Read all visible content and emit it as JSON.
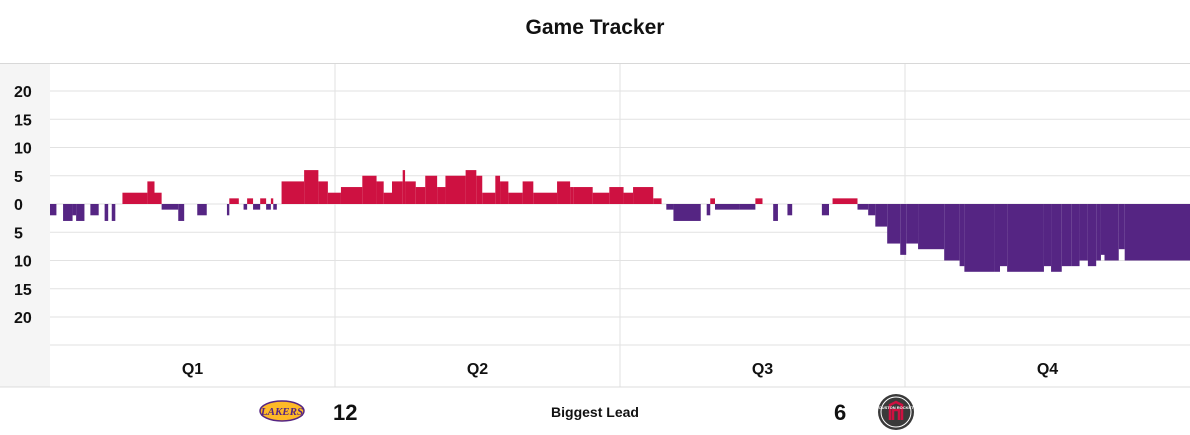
{
  "title": "Game Tracker",
  "colors": {
    "home": "#552583",
    "away": "#CE1141",
    "grid": "#e2e2e2",
    "axis_bg": "#f5f5f5"
  },
  "chart_data": {
    "type": "bar",
    "description": "Lead margin by game minute; positive = Rockets lead (red, above zero), negative = Lakers lead (purple, below zero)",
    "ytick_labels": [
      "20",
      "15",
      "10",
      "5",
      "0",
      "5",
      "10",
      "15",
      "20"
    ],
    "ytick_values": [
      20,
      15,
      10,
      5,
      0,
      -5,
      -10,
      -15,
      -20
    ],
    "ylim": [
      -25,
      25
    ],
    "grid": true,
    "xlim": [
      0,
      48
    ],
    "categories": [
      "Q1",
      "Q2",
      "Q3",
      "Q4"
    ],
    "series": [
      {
        "values": [
          [
            0.0,
            -2
          ],
          [
            0.27,
            0
          ],
          [
            0.55,
            -3
          ],
          [
            0.95,
            -2
          ],
          [
            1.1,
            -3
          ],
          [
            1.45,
            0
          ],
          [
            1.7,
            -2
          ],
          [
            2.05,
            0
          ],
          [
            2.3,
            -3
          ],
          [
            2.45,
            0
          ],
          [
            2.6,
            -3
          ],
          [
            2.75,
            0
          ],
          [
            3.05,
            2
          ],
          [
            4.1,
            4
          ],
          [
            4.4,
            2
          ],
          [
            4.7,
            -1
          ],
          [
            5.4,
            -3
          ],
          [
            5.65,
            0
          ],
          [
            6.2,
            -2
          ],
          [
            6.6,
            0
          ],
          [
            7.45,
            -2
          ],
          [
            7.55,
            1
          ],
          [
            7.95,
            0
          ],
          [
            8.15,
            -1
          ],
          [
            8.3,
            1
          ],
          [
            8.55,
            -1
          ],
          [
            8.85,
            1
          ],
          [
            9.1,
            -1
          ],
          [
            9.3,
            1
          ],
          [
            9.4,
            -1
          ],
          [
            9.55,
            0
          ],
          [
            9.75,
            4
          ],
          [
            10.7,
            6
          ],
          [
            11.3,
            4
          ],
          [
            11.7,
            2
          ],
          [
            12.25,
            3
          ],
          [
            13.15,
            5
          ],
          [
            13.75,
            4
          ],
          [
            14.05,
            2
          ],
          [
            14.4,
            4
          ],
          [
            14.85,
            6
          ],
          [
            14.95,
            4
          ],
          [
            15.4,
            3
          ],
          [
            15.8,
            5
          ],
          [
            16.3,
            3
          ],
          [
            16.65,
            5
          ],
          [
            17.5,
            6
          ],
          [
            17.95,
            5
          ],
          [
            18.2,
            2
          ],
          [
            18.75,
            5
          ],
          [
            18.95,
            4
          ],
          [
            19.3,
            2
          ],
          [
            19.9,
            4
          ],
          [
            20.35,
            2
          ],
          [
            21.35,
            4
          ],
          [
            21.9,
            3
          ],
          [
            22.05,
            3
          ],
          [
            22.85,
            2
          ],
          [
            23.55,
            3
          ],
          [
            24.15,
            2
          ],
          [
            24.55,
            3
          ],
          [
            25.4,
            1
          ],
          [
            25.75,
            0
          ],
          [
            25.95,
            -1
          ],
          [
            26.25,
            -3
          ],
          [
            27.4,
            0
          ],
          [
            27.65,
            -2
          ],
          [
            27.8,
            1
          ],
          [
            28.0,
            -1
          ],
          [
            29.05,
            -1
          ],
          [
            29.7,
            1
          ],
          [
            30.0,
            0
          ],
          [
            30.45,
            -3
          ],
          [
            30.65,
            0
          ],
          [
            31.05,
            -2
          ],
          [
            31.25,
            0
          ],
          [
            32.5,
            -2
          ],
          [
            32.8,
            0
          ],
          [
            32.95,
            1
          ],
          [
            34.0,
            -1
          ],
          [
            34.45,
            -2
          ],
          [
            34.75,
            -4
          ],
          [
            35.25,
            -7
          ],
          [
            35.8,
            -9
          ],
          [
            36.05,
            -7
          ],
          [
            36.55,
            -8
          ],
          [
            37.65,
            -10
          ],
          [
            38.3,
            -11
          ],
          [
            38.5,
            -12
          ],
          [
            39.75,
            -12
          ],
          [
            40.0,
            -11
          ],
          [
            40.3,
            -12
          ],
          [
            41.85,
            -11
          ],
          [
            42.15,
            -12
          ],
          [
            42.6,
            -11
          ],
          [
            43.0,
            -11
          ],
          [
            43.35,
            -10
          ],
          [
            43.7,
            -11
          ],
          [
            44.05,
            -10
          ],
          [
            44.25,
            -9
          ],
          [
            44.4,
            -10
          ],
          [
            45.0,
            -8
          ],
          [
            45.25,
            -10
          ],
          [
            46.0,
            -10
          ]
        ]
      }
    ]
  },
  "footer": {
    "home_team_logo": "lakers-logo",
    "home_biggest_lead": "12",
    "label": "Biggest Lead",
    "away_biggest_lead": "6",
    "away_team_logo": "rockets-logo"
  }
}
